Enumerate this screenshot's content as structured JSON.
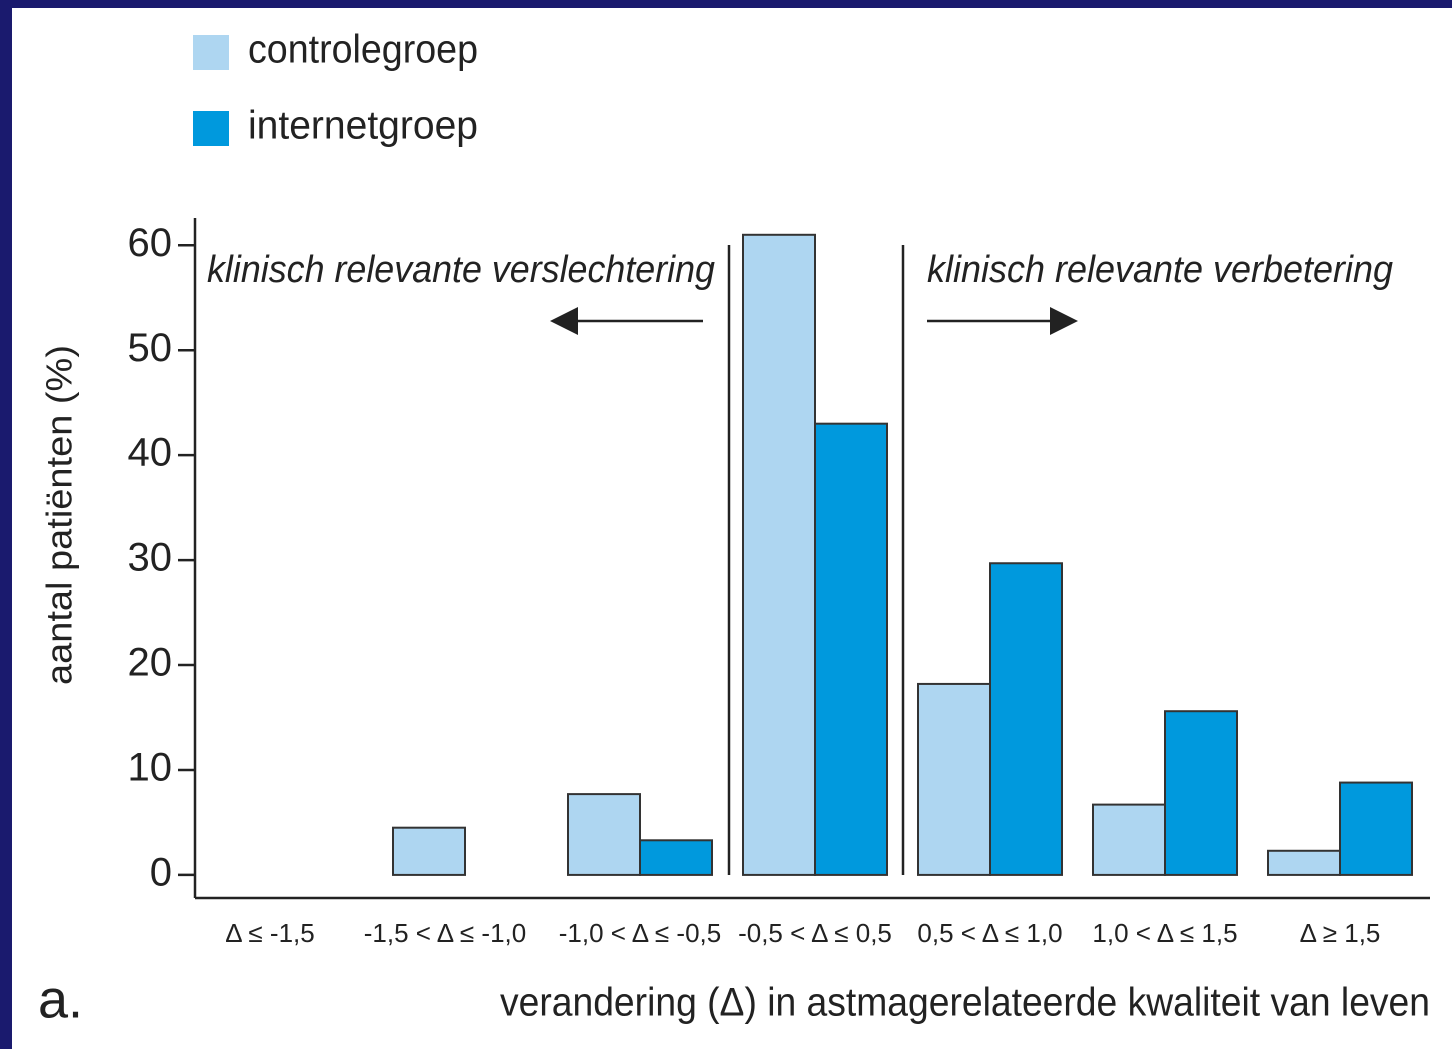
{
  "chart_data": {
    "type": "bar",
    "categories": [
      "Δ ≤ -1,5",
      "-1,5 < Δ ≤ -1,0",
      "-1,0 < Δ ≤ -0,5",
      "-0,5 < Δ ≤ 0,5",
      "0,5 < Δ ≤ 1,0",
      "1,0 < Δ ≤ 1,5",
      "Δ ≥ 1,5"
    ],
    "series": [
      {
        "name": "controlegroep",
        "color": "#aed6f1",
        "values": [
          null,
          4.5,
          7.7,
          61,
          18.2,
          6.7,
          2.3
        ]
      },
      {
        "name": "internetgroep",
        "color": "#0099dd",
        "values": [
          null,
          null,
          3.3,
          43,
          29.7,
          15.6,
          8.8
        ]
      }
    ],
    "ylim": [
      -2.2,
      62.6
    ],
    "yticks": [
      0,
      10,
      20,
      30,
      40,
      50,
      60
    ],
    "y_label": "aantal patiënten (%)",
    "x_label": "verandering (Δ) in astmagerelateerde kwaliteit van leven",
    "annotations": [
      "klinisch relevante verslechtering",
      "klinisch relevante verbetering"
    ],
    "panel_label": "a."
  }
}
